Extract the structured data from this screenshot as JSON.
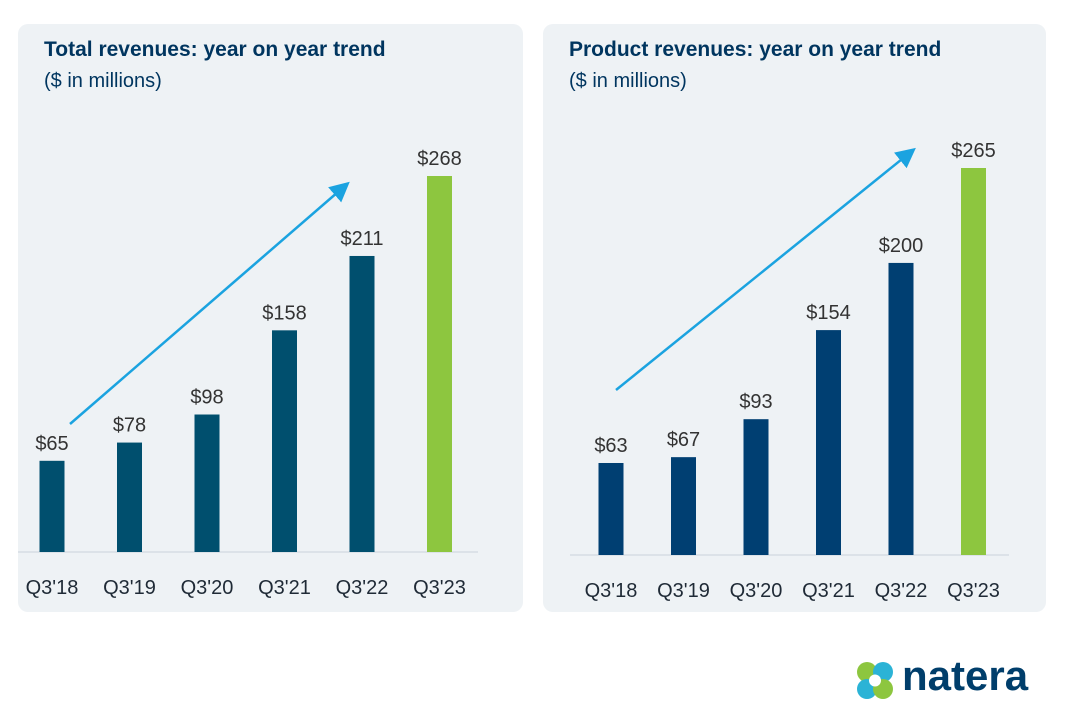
{
  "colors": {
    "bar": "#00355f",
    "highlight": "#8dc63f",
    "arrow": "#1ba3e0",
    "axis": "#c9d3dc"
  },
  "logo": {
    "text": "natera",
    "icon": "natera-logo-icon"
  },
  "chart_data": [
    {
      "type": "bar",
      "title": "Total revenues: year on year trend",
      "subtitle": "($ in millions)",
      "categories": [
        "Q3'18",
        "Q3'19",
        "Q3'20",
        "Q3'21",
        "Q3'22",
        "Q3'23"
      ],
      "values": [
        65,
        78,
        98,
        158,
        211,
        268
      ],
      "value_labels": [
        "$65",
        "$78",
        "$98",
        "$158",
        "$211",
        "$268"
      ],
      "highlight_index": 5,
      "bar_color": "#004f6e",
      "trend_arrow": true,
      "ylim": [
        0,
        268
      ]
    },
    {
      "type": "bar",
      "title": "Product revenues: year on year trend",
      "subtitle": "($ in millions)",
      "categories": [
        "Q3'18",
        "Q3'19",
        "Q3'20",
        "Q3'21",
        "Q3'22",
        "Q3'23"
      ],
      "values": [
        63,
        67,
        93,
        154,
        200,
        265
      ],
      "value_labels": [
        "$63",
        "$67",
        "$93",
        "$154",
        "$200",
        "$265"
      ],
      "highlight_index": 5,
      "bar_color": "#003f72",
      "trend_arrow": true,
      "ylim": [
        0,
        265
      ]
    }
  ]
}
